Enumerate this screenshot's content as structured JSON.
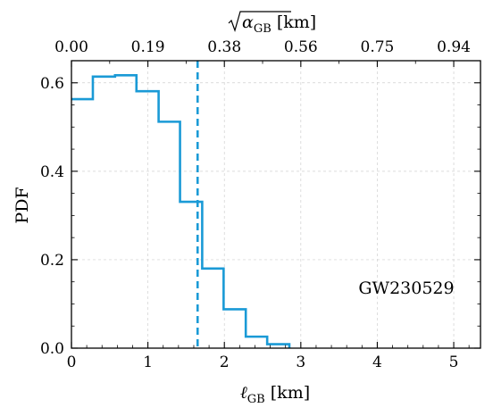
{
  "chart_data": {
    "type": "histogram",
    "xlabel_main": "ℓ",
    "xlabel_sub": "GB",
    "xlabel_unit": " [km]",
    "ylabel": "PDF",
    "top_xlabel_main": "α",
    "top_xlabel_sub": "GB",
    "top_xlabel_unit": " [km]",
    "annotation": "GW230529",
    "xlim": [
      0,
      5.35
    ],
    "ylim": [
      0,
      0.65
    ],
    "xticks": [
      0,
      1,
      2,
      3,
      4,
      5
    ],
    "xtick_labels": [
      "0",
      "1",
      "2",
      "3",
      "4",
      "5"
    ],
    "yticks": [
      0.0,
      0.2,
      0.4,
      0.6
    ],
    "ytick_labels": [
      "0.0",
      "0.2",
      "0.4",
      "0.6"
    ],
    "top_xticks": [
      0,
      1.0,
      2.0,
      3.0,
      4.0,
      5.0
    ],
    "top_xtick_labels": [
      "0.00",
      "0.19",
      "0.38",
      "0.56",
      "0.75",
      "0.94"
    ],
    "grid": true,
    "bin_edges": [
      0,
      0.28,
      0.57,
      0.85,
      1.14,
      1.42,
      1.71,
      1.99,
      2.28,
      2.56,
      2.85
    ],
    "values": [
      0.563,
      0.614,
      0.617,
      0.581,
      0.512,
      0.331,
      0.18,
      0.088,
      0.026,
      0.009
    ],
    "vline_x": 1.65,
    "color": "#1a9ad6"
  }
}
